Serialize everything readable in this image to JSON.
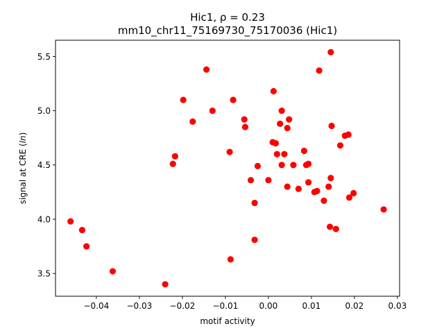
{
  "chart_data": {
    "type": "scatter",
    "title_line1": "Hic1, ρ = 0.23",
    "title_line2": "mm10_chr11_75169730_75170036 (Hic1)",
    "xlabel": "motif activity",
    "ylabel": "signal at CRE (ln)",
    "xlim": [
      -0.0495,
      0.0305
    ],
    "ylim": [
      3.29,
      5.65
    ],
    "xticks": [
      -0.04,
      -0.03,
      -0.02,
      -0.01,
      0.0,
      0.01,
      0.02,
      0.03
    ],
    "xtick_labels": [
      "−0.04",
      "−0.03",
      "−0.02",
      "−0.01",
      "0.00",
      "0.01",
      "0.02",
      "0.03"
    ],
    "yticks": [
      3.5,
      4.0,
      4.5,
      5.0,
      5.5
    ],
    "ytick_labels": [
      "3.5",
      "4.0",
      "4.5",
      "5.0",
      "5.5"
    ],
    "marker_color": "#ff0000",
    "grid": false,
    "points": [
      {
        "x": -0.046,
        "y": 3.98
      },
      {
        "x": -0.0433,
        "y": 3.9
      },
      {
        "x": -0.0423,
        "y": 3.75
      },
      {
        "x": -0.0362,
        "y": 3.52
      },
      {
        "x": -0.024,
        "y": 3.4
      },
      {
        "x": -0.0222,
        "y": 4.51
      },
      {
        "x": -0.0217,
        "y": 4.58
      },
      {
        "x": -0.0198,
        "y": 5.1
      },
      {
        "x": -0.0176,
        "y": 4.9
      },
      {
        "x": -0.0144,
        "y": 5.38
      },
      {
        "x": -0.013,
        "y": 5.0
      },
      {
        "x": -0.009,
        "y": 4.62
      },
      {
        "x": -0.0088,
        "y": 3.63
      },
      {
        "x": -0.0082,
        "y": 5.1
      },
      {
        "x": -0.0056,
        "y": 4.92
      },
      {
        "x": -0.0054,
        "y": 4.85
      },
      {
        "x": -0.0041,
        "y": 4.36
      },
      {
        "x": -0.0032,
        "y": 4.15
      },
      {
        "x": -0.0032,
        "y": 3.81
      },
      {
        "x": -0.0025,
        "y": 4.49
      },
      {
        "x": 0.0,
        "y": 4.36
      },
      {
        "x": 0.001,
        "y": 4.71
      },
      {
        "x": 0.0012,
        "y": 5.18
      },
      {
        "x": 0.0017,
        "y": 4.7
      },
      {
        "x": 0.002,
        "y": 4.6
      },
      {
        "x": 0.0027,
        "y": 4.88
      },
      {
        "x": 0.0031,
        "y": 5.0
      },
      {
        "x": 0.0031,
        "y": 4.5
      },
      {
        "x": 0.0037,
        "y": 4.6
      },
      {
        "x": 0.0044,
        "y": 4.84
      },
      {
        "x": 0.0044,
        "y": 4.3
      },
      {
        "x": 0.0048,
        "y": 4.92
      },
      {
        "x": 0.0058,
        "y": 4.5
      },
      {
        "x": 0.007,
        "y": 4.28
      },
      {
        "x": 0.0083,
        "y": 4.63
      },
      {
        "x": 0.0088,
        "y": 4.5
      },
      {
        "x": 0.0093,
        "y": 4.51
      },
      {
        "x": 0.0093,
        "y": 4.34
      },
      {
        "x": 0.0107,
        "y": 4.25
      },
      {
        "x": 0.0113,
        "y": 4.26
      },
      {
        "x": 0.0118,
        "y": 5.37
      },
      {
        "x": 0.0129,
        "y": 4.17
      },
      {
        "x": 0.014,
        "y": 4.3
      },
      {
        "x": 0.0143,
        "y": 3.93
      },
      {
        "x": 0.0145,
        "y": 4.38
      },
      {
        "x": 0.0145,
        "y": 5.54
      },
      {
        "x": 0.0147,
        "y": 4.86
      },
      {
        "x": 0.0157,
        "y": 3.91
      },
      {
        "x": 0.0167,
        "y": 4.68
      },
      {
        "x": 0.0178,
        "y": 4.77
      },
      {
        "x": 0.0186,
        "y": 4.78
      },
      {
        "x": 0.0188,
        "y": 4.2
      },
      {
        "x": 0.0198,
        "y": 4.24
      },
      {
        "x": 0.0268,
        "y": 4.09
      }
    ]
  }
}
